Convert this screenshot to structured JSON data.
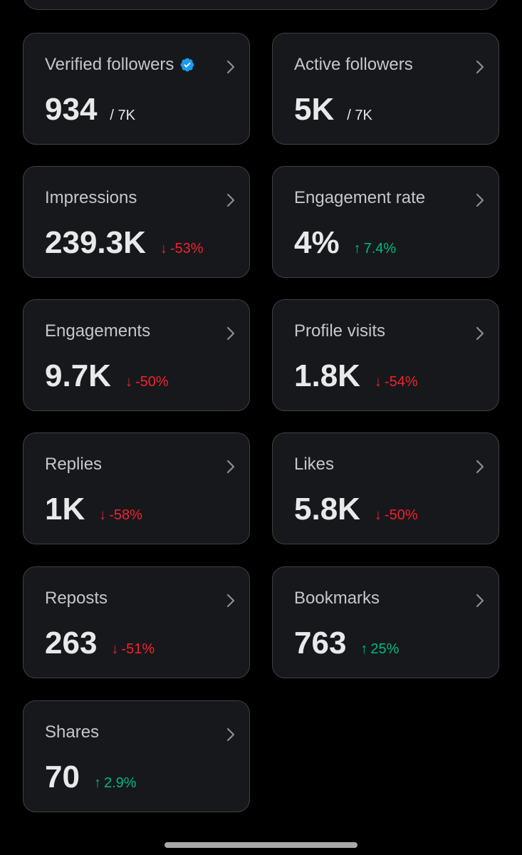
{
  "colors": {
    "background": "#000000",
    "card": "#16181c",
    "card_border": "#3e4144",
    "label": "#c4c7cb",
    "value": "#e7e9ea",
    "negative": "#f4212e",
    "positive": "#00ba7c",
    "verified": "#1d9bf0"
  },
  "cards": [
    {
      "label": "Verified followers",
      "value": "934",
      "suffix": "/ 7K",
      "badge": "verified-badge-icon"
    },
    {
      "label": "Active followers",
      "value": "5K",
      "suffix": "/ 7K"
    },
    {
      "label": "Impressions",
      "value": "239.3K",
      "change": "-53%",
      "direction": "down"
    },
    {
      "label": "Engagement rate",
      "value": "4%",
      "change": "7.4%",
      "direction": "up"
    },
    {
      "label": "Engagements",
      "value": "9.7K",
      "change": "-50%",
      "direction": "down"
    },
    {
      "label": "Profile visits",
      "value": "1.8K",
      "change": "-54%",
      "direction": "down"
    },
    {
      "label": "Replies",
      "value": "1K",
      "change": "-58%",
      "direction": "down"
    },
    {
      "label": "Likes",
      "value": "5.8K",
      "change": "-50%",
      "direction": "down"
    },
    {
      "label": "Reposts",
      "value": "263",
      "change": "-51%",
      "direction": "down"
    },
    {
      "label": "Bookmarks",
      "value": "763",
      "change": "25%",
      "direction": "up"
    },
    {
      "label": "Shares",
      "value": "70",
      "change": "2.9%",
      "direction": "up"
    }
  ],
  "icons": {
    "chevron": "chevron-right-icon",
    "down": "arrow-down-icon",
    "up": "arrow-up-icon"
  }
}
